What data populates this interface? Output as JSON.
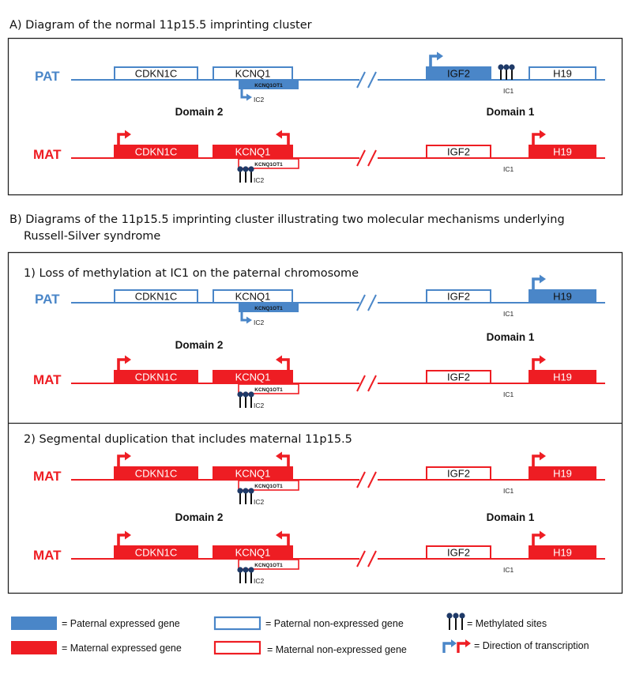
{
  "colors": {
    "pat": "#4a86c8",
    "mat": "#ee1d23",
    "methyl": "#1f3a68"
  },
  "titles": {
    "a": "A) Diagram of the normal 11p15.5 imprinting cluster",
    "b_line1": "B) Diagrams of the 11p15.5 imprinting cluster illustrating two molecular mechanisms underlying",
    "b_line2": "Russell-Silver syndrome",
    "b1": "1) Loss of methylation at IC1 on the paternal chromosome",
    "b2": "2) Segmental duplication that includes maternal 11p15.5"
  },
  "labels": {
    "pat": "PAT",
    "mat": "MAT",
    "domain1": "Domain 1",
    "domain2": "Domain 2",
    "cdkn1c": "CDKN1C",
    "kcnq1": "KCNQ1",
    "kcnq1ot1": "KCNQ1OT1",
    "igf2": "IGF2",
    "h19": "H19",
    "ic1": "IC1",
    "ic2": "IC2"
  },
  "legend": {
    "pat_expr": "= Paternal expressed gene",
    "mat_expr": "= Maternal expressed gene",
    "pat_non": "= Paternal non-expressed gene",
    "mat_non": "= Maternal non-expressed gene",
    "methyl": "= Methylated sites",
    "direction": "= Direction of transcription"
  },
  "tracks": [
    {
      "parent": "pat",
      "kcnq1ot1_expressed": true,
      "igf2_expressed": true,
      "h19_expressed": false,
      "ic1_methylated": true,
      "ic2_methylated": false
    },
    {
      "parent": "mat",
      "kcnq1ot1_expressed": false,
      "igf2_expressed": false,
      "h19_expressed": true,
      "ic1_methylated": false,
      "ic2_methylated": true
    },
    {
      "parent": "pat",
      "kcnq1ot1_expressed": true,
      "igf2_expressed": false,
      "h19_expressed": true,
      "ic1_methylated": false,
      "ic2_methylated": false
    },
    {
      "parent": "mat",
      "kcnq1ot1_expressed": false,
      "igf2_expressed": false,
      "h19_expressed": true,
      "ic1_methylated": false,
      "ic2_methylated": true
    },
    {
      "parent": "mat",
      "kcnq1ot1_expressed": false,
      "igf2_expressed": false,
      "h19_expressed": true,
      "ic1_methylated": false,
      "ic2_methylated": true
    },
    {
      "parent": "mat",
      "kcnq1ot1_expressed": false,
      "igf2_expressed": false,
      "h19_expressed": true,
      "ic1_methylated": false,
      "ic2_methylated": true
    }
  ]
}
